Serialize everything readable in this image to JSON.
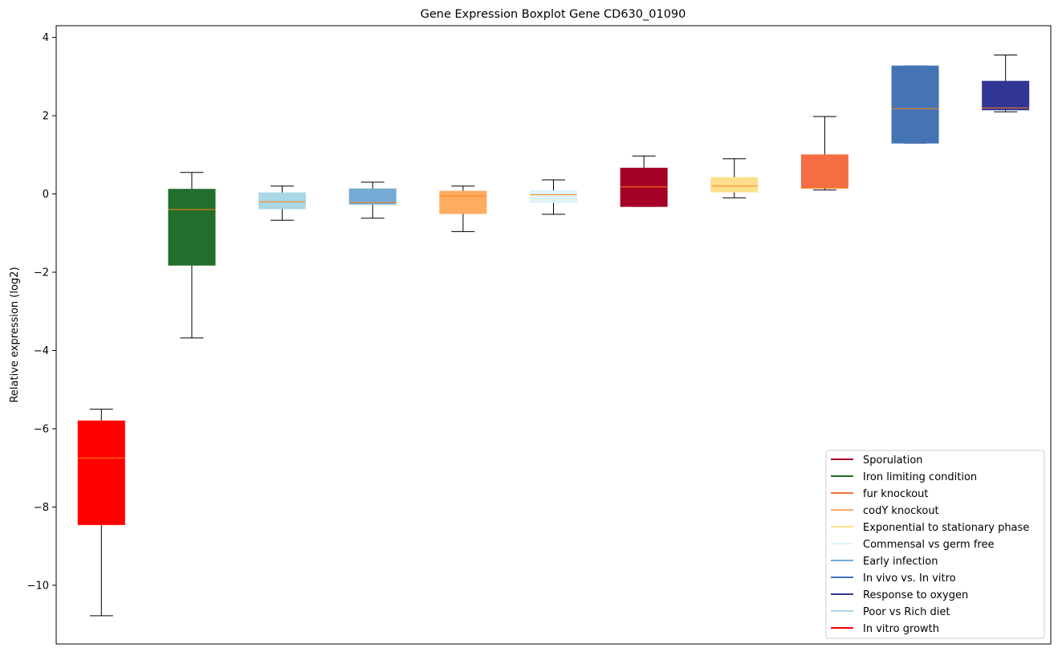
{
  "chart_data": {
    "type": "boxplot",
    "title": "Gene Expression Boxplot Gene CD630_01090",
    "xlabel": "",
    "ylabel": "Relative expression (log2)",
    "ylim": [
      -11.5,
      4.3
    ],
    "yticks": [
      4,
      2,
      0,
      -2,
      -4,
      -6,
      -8,
      -10
    ],
    "ytick_labels": [
      "4",
      "2",
      "0",
      "−2",
      "−4",
      "−6",
      "−8",
      "−10"
    ],
    "grid": false,
    "legend_position": "lower-right",
    "boxes": [
      {
        "name": "In vitro growth",
        "color": "#ff0000",
        "whisker_low": -10.78,
        "q1": -8.45,
        "median": -6.75,
        "q3": -5.8,
        "whisker_high": -5.5
      },
      {
        "name": "Iron limiting condition",
        "color": "#226e2d",
        "whisker_low": -3.68,
        "q1": -1.82,
        "median": -0.4,
        "q3": 0.12,
        "whisker_high": 0.55
      },
      {
        "name": "Poor vs Rich diet",
        "color": "#a9d8e6",
        "whisker_low": -0.67,
        "q1": -0.38,
        "median": -0.2,
        "q3": 0.03,
        "whisker_high": 0.2
      },
      {
        "name": "Early infection",
        "color": "#74aad3",
        "whisker_low": -0.62,
        "q1": -0.26,
        "median": -0.22,
        "q3": 0.13,
        "whisker_high": 0.3
      },
      {
        "name": "codY knockout",
        "color": "#fdac62",
        "whisker_low": -0.96,
        "q1": -0.5,
        "median": -0.05,
        "q3": 0.07,
        "whisker_high": 0.2
      },
      {
        "name": "Commensal vs germ free",
        "color": "#dff2f8",
        "whisker_low": -0.52,
        "q1": -0.22,
        "median": -0.02,
        "q3": 0.08,
        "whisker_high": 0.36
      },
      {
        "name": "Sporulation",
        "color": "#a50126",
        "whisker_low": -0.32,
        "q1": -0.32,
        "median": 0.18,
        "q3": 0.66,
        "whisker_high": 0.97
      },
      {
        "name": "Exponential to stationary phase",
        "color": "#fee08c",
        "whisker_low": -0.1,
        "q1": 0.05,
        "median": 0.2,
        "q3": 0.42,
        "whisker_high": 0.9
      },
      {
        "name": "fur knockout",
        "color": "#f46d43",
        "whisker_low": 0.1,
        "q1": 0.15,
        "median": 0.15,
        "q3": 1.0,
        "whisker_high": 1.98
      },
      {
        "name": "In vivo vs. In vitro",
        "color": "#4574b4",
        "whisker_low": 1.3,
        "q1": 1.3,
        "median": 2.18,
        "q3": 3.27,
        "whisker_high": 3.27
      },
      {
        "name": "Response to oxygen",
        "color": "#313594",
        "whisker_low": 2.1,
        "q1": 2.15,
        "median": 2.2,
        "q3": 2.88,
        "whisker_high": 3.55
      }
    ],
    "median_color": "#ff7f0e",
    "legend": [
      {
        "label": "Sporulation",
        "color": "#a50126"
      },
      {
        "label": "Iron limiting condition",
        "color": "#226e2d"
      },
      {
        "label": "fur knockout",
        "color": "#f46d43"
      },
      {
        "label": "codY knockout",
        "color": "#fdac62"
      },
      {
        "label": "Exponential to stationary phase",
        "color": "#fee08c"
      },
      {
        "label": "Commensal vs germ free",
        "color": "#dff2f8"
      },
      {
        "label": "Early infection",
        "color": "#74aad3"
      },
      {
        "label": "In vivo vs. In vitro",
        "color": "#3b73b9"
      },
      {
        "label": "Response to oxygen",
        "color": "#313594"
      },
      {
        "label": "Poor vs Rich diet",
        "color": "#a9d8e6"
      },
      {
        "label": "In vitro growth",
        "color": "#ff0000"
      }
    ]
  }
}
